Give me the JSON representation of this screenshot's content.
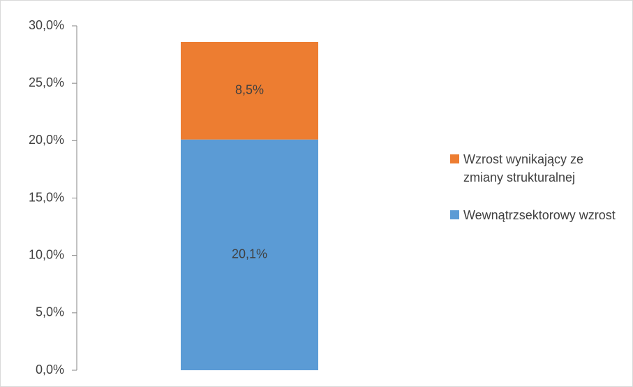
{
  "chart_data": {
    "type": "stacked-bar",
    "categories": [
      null
    ],
    "series": [
      {
        "name": "Wewnątrzsektorowy wzrost",
        "color": "#5b9bd5",
        "values": [
          20.1
        ],
        "value_labels": [
          "20,1%"
        ]
      },
      {
        "name": "Wzrost wynikający ze zmiany strukturalnej",
        "color": "#ed7d31",
        "values": [
          8.5
        ],
        "value_labels": [
          "8,5%"
        ]
      }
    ],
    "ylim": [
      0,
      30
    ],
    "yticks": [
      {
        "value": 0,
        "label": "0,0%"
      },
      {
        "value": 5,
        "label": "5,0%"
      },
      {
        "value": 10,
        "label": "10,0%"
      },
      {
        "value": 15,
        "label": "15,0%"
      },
      {
        "value": 20,
        "label": "20,0%"
      },
      {
        "value": 25,
        "label": "25,0%"
      },
      {
        "value": 30,
        "label": "30,0%"
      }
    ],
    "legend": "right"
  }
}
